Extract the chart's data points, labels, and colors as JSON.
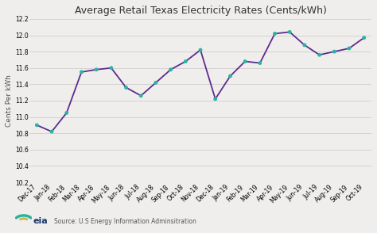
{
  "title": "Average Retail Texas Electricity Rates (Cents/kWh)",
  "ylabel": "Cents Per kWh",
  "x_labels": [
    "Dec-17",
    "Jan-18",
    "Feb-18",
    "Mar-18",
    "Apr-18",
    "May-18",
    "Jun-18",
    "Jul-18",
    "Aug-18",
    "Sep-18",
    "Oct-18",
    "Nov-18",
    "Dec-18",
    "Jan-19",
    "Feb-19",
    "Mar-19",
    "Apr-19",
    "May-19",
    "Jun-19",
    "Jul-19",
    "Aug-19",
    "Sep-19",
    "Oct-19"
  ],
  "values": [
    10.9,
    10.82,
    11.05,
    11.55,
    11.58,
    11.6,
    11.36,
    11.26,
    11.42,
    11.58,
    11.68,
    11.82,
    11.22,
    11.5,
    11.68,
    11.66,
    12.02,
    12.04,
    11.88,
    11.76,
    11.8,
    11.84,
    11.97
  ],
  "line_color": "#5b2d8e",
  "marker_color": "#2ab4a0",
  "marker_size": 3.5,
  "line_width": 1.3,
  "ylim": [
    10.2,
    12.2
  ],
  "yticks": [
    10.2,
    10.4,
    10.6,
    10.8,
    11.0,
    11.2,
    11.4,
    11.6,
    11.8,
    12.0,
    12.2
  ],
  "bg_color": "#f0eeec",
  "plot_bg_color": "#f0eeec",
  "grid_color": "#c8c8c8",
  "source_text": "Source: U.S Energy Information Adminsitration",
  "title_fontsize": 9,
  "axis_fontsize": 5.5,
  "ylabel_fontsize": 6.5
}
